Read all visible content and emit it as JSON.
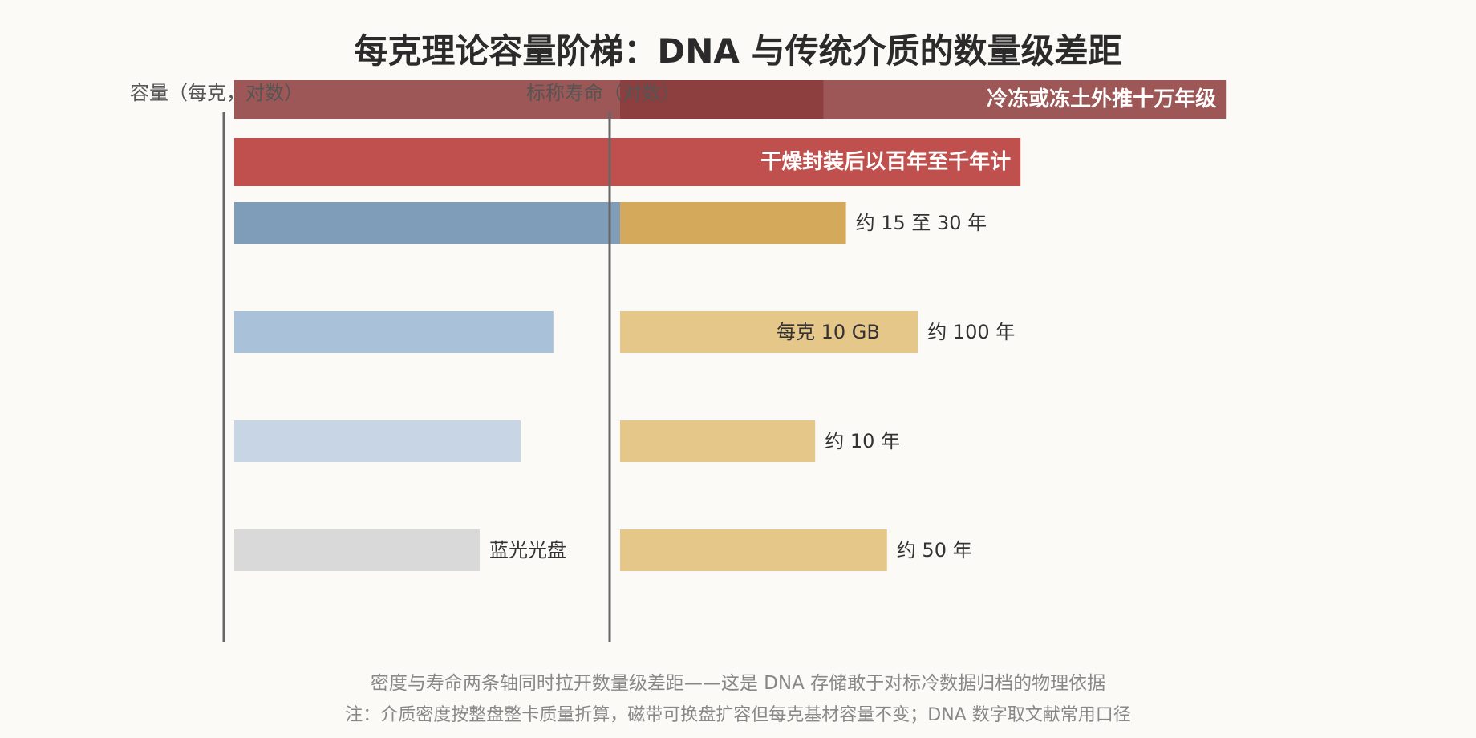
{
  "title": "每克理论容量阶梯：DNA 与传统介质的数量级差距",
  "chart_data": {
    "type": "bar",
    "title": "每克理论容量阶梯：DNA 与传统介质的数量级差距",
    "left_axis_label": "容量（每克，对数）",
    "right_axis_label": "标称寿命（对数）",
    "grid": false,
    "rows": [
      {
        "category": "",
        "capacity_label": "",
        "lifespan_label": "冷冻或冻土外推十万年级",
        "capacity_color": "#8b3a3a",
        "lifespan_color": "#8b3a3a",
        "capacity_log": 10.9,
        "lifespan_log": 5.0
      },
      {
        "category": "",
        "capacity_label": "",
        "lifespan_label": "干燥封装后以百年至千年计",
        "capacity_color": "#c0504d",
        "lifespan_color": "#c0504d",
        "capacity_log": 10.9,
        "lifespan_log": 3.0
      },
      {
        "category": "",
        "capacity_label": "",
        "lifespan_label": "约 15 至 30 年",
        "capacity_color": "#7f9db9",
        "lifespan_color": "#d4a95b",
        "capacity_log": 4.0,
        "lifespan_log": 1.3
      },
      {
        "category": "",
        "capacity_label": "每克 10 GB",
        "lifespan_label": "约 100 年",
        "capacity_color": "#aac1da",
        "lifespan_color": "#e6c78a",
        "capacity_log": 1.0,
        "lifespan_log": 2.0
      },
      {
        "category": "",
        "capacity_label": "",
        "lifespan_label": "约 10 年",
        "capacity_color": "#c7d5e5",
        "lifespan_color": "#e6c78a",
        "capacity_log": -0.2,
        "lifespan_log": 1.0
      },
      {
        "category": "蓝光光盘",
        "capacity_label": "",
        "lifespan_label": "约 50 年",
        "capacity_color": "#d9d9d9",
        "lifespan_color": "#e6c78a",
        "capacity_log": -1.7,
        "lifespan_log": 1.7
      }
    ]
  },
  "captions": {
    "main": "密度与寿命两条轴同时拉开数量级差距——这是 DNA 存储敢于对标冷数据归档的物理依据",
    "note": "注：介质密度按整盘整卡质量折算，磁带可换盘扩容但每克基材容量不变；DNA 数字取文献常用口径"
  }
}
